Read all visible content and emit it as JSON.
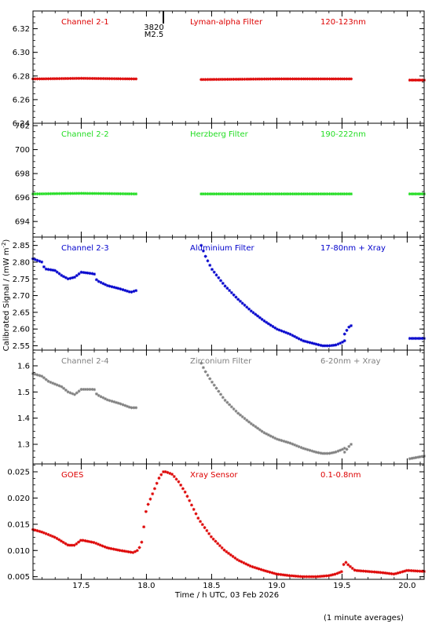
{
  "chart_data": {
    "type": "scatter",
    "ylabel": "Calibrated Signal / (mW m",
    "ylabel_sup": "-2",
    "ylabel_close": ")",
    "xlabel": "Time / h UTC, 03 Feb 2026",
    "xlim": [
      17.13,
      20.13
    ],
    "xticks": [
      17.5,
      18.0,
      18.5,
      19.0,
      19.5,
      20.0
    ],
    "xtick_labels": [
      "17.5",
      "18.0",
      "18.5",
      "19.0",
      "19.5",
      "20.0"
    ],
    "footnote": "(1 minute averages)",
    "flare": {
      "x": 18.13,
      "label_1": "3820",
      "label_2": "M2.5"
    },
    "panels": [
      {
        "channel": "Channel 2-1",
        "filter": "Lyman-alpha Filter",
        "band": "120-123nm",
        "color": "#dd0000",
        "ylim": [
          6.24,
          6.335
        ],
        "yticks": [
          6.24,
          6.26,
          6.28,
          6.3,
          6.32
        ],
        "ytick_labels": [
          "6.24",
          "6.26",
          "6.28",
          "6.30",
          "6.32"
        ],
        "segments": [
          {
            "x": [
              17.13,
              17.5,
              17.92
            ],
            "y": [
              6.2775,
              6.278,
              6.2775
            ]
          },
          {
            "x": [
              18.42,
              19.0,
              19.57
            ],
            "y": [
              6.277,
              6.2775,
              6.2775
            ]
          },
          {
            "x": [
              20.02,
              20.13
            ],
            "y": [
              6.2765,
              6.2765
            ]
          }
        ]
      },
      {
        "channel": "Channel 2-2",
        "filter": "Herzberg Filter",
        "band": "190-222nm",
        "color": "#22dd22",
        "ylim": [
          692.7,
          702.2
        ],
        "yticks": [
          694,
          696,
          698,
          700,
          702
        ],
        "ytick_labels": [
          "694",
          "696",
          "698",
          "700",
          "702"
        ],
        "segments": [
          {
            "x": [
              17.13,
              17.5,
              17.92
            ],
            "y": [
              696.3,
              696.35,
              696.3
            ]
          },
          {
            "x": [
              18.42,
              19.0,
              19.57
            ],
            "y": [
              696.3,
              696.3,
              696.3
            ]
          },
          {
            "x": [
              20.02,
              20.13
            ],
            "y": [
              696.3,
              696.3
            ]
          }
        ]
      },
      {
        "channel": "Channel 2-3",
        "filter": "Aluminium Filter",
        "band": "17-80nm + Xray",
        "color": "#0000cc",
        "ylim": [
          2.537,
          2.875
        ],
        "yticks": [
          2.55,
          2.6,
          2.65,
          2.7,
          2.75,
          2.8,
          2.85
        ],
        "ytick_labels": [
          "2.55",
          "2.60",
          "2.65",
          "2.70",
          "2.75",
          "2.80",
          "2.85"
        ],
        "segments": [
          {
            "x": [
              17.13,
              17.2,
              17.22,
              17.3,
              17.35,
              17.4,
              17.45,
              17.5,
              17.6,
              17.62,
              17.7,
              17.8,
              17.88,
              17.92
            ],
            "y": [
              2.81,
              2.8,
              2.78,
              2.775,
              2.76,
              2.75,
              2.755,
              2.77,
              2.765,
              2.745,
              2.73,
              2.72,
              2.71,
              2.715
            ]
          },
          {
            "x": [
              18.42,
              18.45,
              18.5,
              18.6,
              18.7,
              18.8,
              18.9,
              19.0,
              19.1,
              19.2,
              19.3,
              19.35,
              19.4,
              19.45,
              19.5,
              19.52
            ],
            "y": [
              2.85,
              2.82,
              2.78,
              2.73,
              2.69,
              2.655,
              2.625,
              2.6,
              2.585,
              2.565,
              2.555,
              2.55,
              2.55,
              2.552,
              2.56,
              2.565
            ]
          },
          {
            "x": [
              19.52,
              19.55,
              19.57
            ],
            "y": [
              2.585,
              2.605,
              2.61
            ]
          },
          {
            "x": [
              20.02,
              20.13
            ],
            "y": [
              2.572,
              2.572
            ]
          }
        ]
      },
      {
        "channel": "Channel 2-4",
        "filter": "Zirconium Filter",
        "band": "6-20nm + Xray",
        "color": "#808080",
        "ylim": [
          1.225,
          1.66
        ],
        "yticks": [
          1.3,
          1.4,
          1.5,
          1.6
        ],
        "ytick_labels": [
          "1.3",
          "1.4",
          "1.5",
          "1.6"
        ],
        "segments": [
          {
            "x": [
              17.13,
              17.2,
              17.25,
              17.3,
              17.35,
              17.4,
              17.45,
              17.5,
              17.6,
              17.62,
              17.7,
              17.8,
              17.88,
              17.92
            ],
            "y": [
              1.57,
              1.56,
              1.54,
              1.53,
              1.52,
              1.5,
              1.49,
              1.51,
              1.51,
              1.49,
              1.47,
              1.455,
              1.44,
              1.44
            ]
          },
          {
            "x": [
              18.42,
              18.45,
              18.5,
              18.6,
              18.7,
              18.8,
              18.9,
              19.0,
              19.1,
              19.2,
              19.3,
              19.35,
              19.4,
              19.45,
              19.5,
              19.52
            ],
            "y": [
              1.61,
              1.58,
              1.54,
              1.47,
              1.42,
              1.38,
              1.345,
              1.32,
              1.305,
              1.285,
              1.27,
              1.265,
              1.265,
              1.27,
              1.28,
              1.285
            ]
          },
          {
            "x": [
              19.52,
              19.55,
              19.57
            ],
            "y": [
              1.27,
              1.29,
              1.3
            ]
          },
          {
            "x": [
              20.02,
              20.13
            ],
            "y": [
              1.245,
              1.255
            ]
          }
        ]
      },
      {
        "channel": "GOES",
        "filter": "Xray Sensor",
        "band": "0.1-0.8nm",
        "color": "#dd0000",
        "ylim": [
          0.0045,
          0.0265
        ],
        "yticks": [
          0.005,
          0.01,
          0.015,
          0.02,
          0.025
        ],
        "ytick_labels": [
          "0.005",
          "0.010",
          "0.015",
          "0.020",
          "0.025"
        ],
        "segments": [
          {
            "x": [
              17.13,
              17.2,
              17.3,
              17.4,
              17.45,
              17.5,
              17.6,
              17.7,
              17.8,
              17.9,
              17.93,
              17.96,
              18.0,
              18.05,
              18.1,
              18.13,
              18.15,
              18.2,
              18.25,
              18.3,
              18.35,
              18.4,
              18.5,
              18.6,
              18.7,
              18.8,
              18.9,
              19.0,
              19.1,
              19.2,
              19.3,
              19.4,
              19.45,
              19.5,
              19.52,
              19.55,
              19.6,
              19.7,
              19.8,
              19.9,
              20.0,
              20.13
            ],
            "y": [
              0.014,
              0.0135,
              0.0125,
              0.011,
              0.011,
              0.012,
              0.0115,
              0.0105,
              0.01,
              0.0096,
              0.01,
              0.011,
              0.018,
              0.021,
              0.024,
              0.025,
              0.025,
              0.0245,
              0.023,
              0.021,
              0.0185,
              0.016,
              0.0125,
              0.01,
              0.0082,
              0.007,
              0.0062,
              0.0055,
              0.0052,
              0.005,
              0.005,
              0.0052,
              0.0055,
              0.006,
              0.008,
              0.0072,
              0.0062,
              0.006,
              0.0058,
              0.0055,
              0.0062,
              0.006
            ]
          }
        ]
      }
    ]
  }
}
